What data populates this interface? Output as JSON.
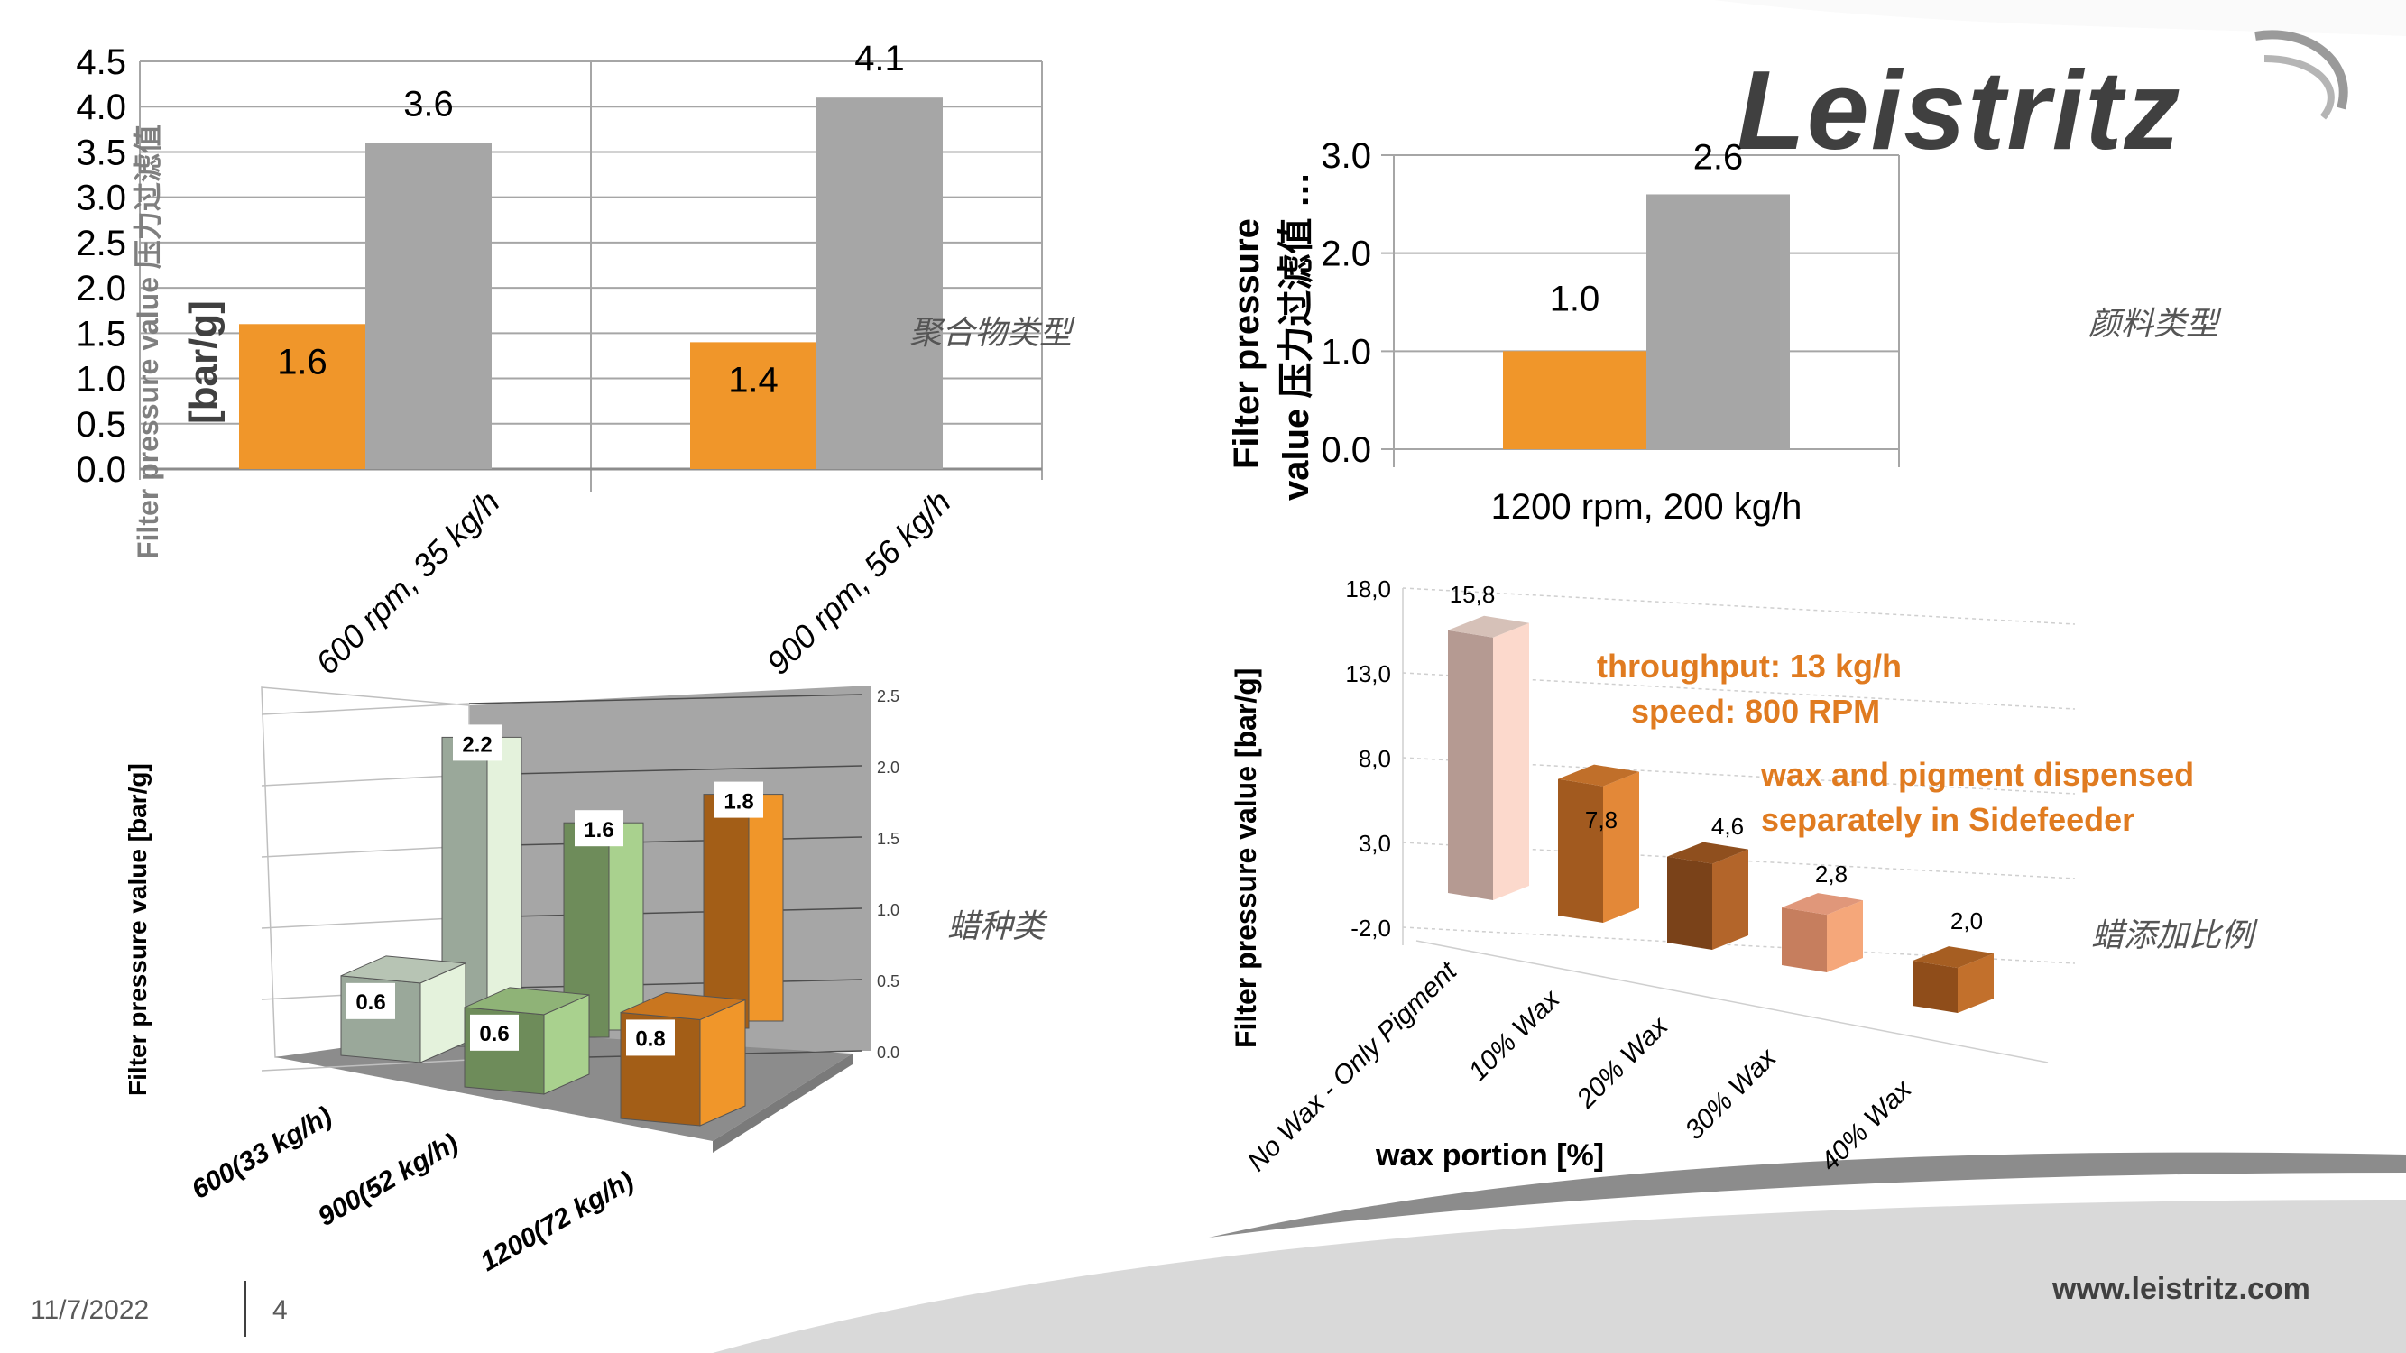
{
  "slide": {
    "date": "11/7/2022",
    "page_number": "4",
    "website": "www.leistritz.com",
    "logo_text": "Leistritz",
    "colors": {
      "orange": "#F0962A",
      "gray_bar": "#A6A6A6",
      "text_dark": "#404040",
      "annotation_orange": "#E07B20"
    }
  },
  "chart_data": [
    {
      "id": "polymer-type",
      "type": "bar",
      "title": "",
      "side_label": "聚合物类型",
      "ylabel": "Filter pressure value 压力过滤值 [bar/g]",
      "xlabel": "",
      "ylim": [
        0,
        4.5
      ],
      "yticks": [
        "0.0",
        "0.5",
        "1.0",
        "1.5",
        "2.0",
        "2.5",
        "3.0",
        "3.5",
        "4.0",
        "4.5"
      ],
      "categories": [
        "600 rpm, 35 kg/h",
        "900 rpm, 56 kg/h"
      ],
      "series": [
        {
          "name": "orange",
          "values": [
            1.6,
            1.4
          ],
          "labels": [
            "1.6",
            "1.4"
          ]
        },
        {
          "name": "gray",
          "values": [
            3.6,
            4.1
          ],
          "labels": [
            "3.6",
            "4.1"
          ]
        }
      ],
      "grid": true
    },
    {
      "id": "pigment-type",
      "type": "bar",
      "side_label": "颜料类型",
      "ylabel": "Filter pressure value 压力过滤值 …",
      "ylim": [
        0,
        3.0
      ],
      "yticks": [
        "0.0",
        "1.0",
        "2.0",
        "3.0"
      ],
      "categories": [
        "1200 rpm, 200 kg/h"
      ],
      "series": [
        {
          "name": "orange",
          "values": [
            1.0
          ],
          "labels": [
            "1.0"
          ]
        },
        {
          "name": "gray",
          "values": [
            2.6
          ],
          "labels": [
            "2.6"
          ]
        }
      ],
      "grid": true
    },
    {
      "id": "wax-type",
      "type": "bar",
      "subtype": "3d",
      "side_label": "蜡种类",
      "ylabel": "Filter pressure value   [bar/g]",
      "ylim": [
        0,
        2.5
      ],
      "yticks": [
        "0.0",
        "0.5",
        "1.0",
        "1.5",
        "2.0",
        "2.5"
      ],
      "categories": [
        "600(33 kg/h)",
        "900(52 kg/h)",
        "1200(72 kg/h)"
      ],
      "series": [
        {
          "name": "front",
          "values": [
            0.6,
            0.6,
            0.8
          ],
          "labels": [
            "0.6",
            "0.6",
            "0.8"
          ]
        },
        {
          "name": "back",
          "values": [
            2.2,
            1.6,
            1.8
          ],
          "labels": [
            "2.2",
            "1.6",
            "1.8"
          ]
        }
      ],
      "grid": true
    },
    {
      "id": "wax-portion",
      "type": "bar",
      "subtype": "3d",
      "side_label": "蜡添加比例",
      "ylabel": "Filter pressure value  [bar/g]",
      "xlabel": "wax portion [%]",
      "ylim": [
        -2.0,
        18.0
      ],
      "yticks": [
        "-2,0",
        "3,0",
        "8,0",
        "13,0",
        "18,0"
      ],
      "categories": [
        "No Wax - Only Pigment",
        "10% Wax",
        "20% Wax",
        "30% Wax",
        "40% Wax"
      ],
      "values": [
        15.8,
        7.8,
        4.6,
        2.8,
        2.0
      ],
      "labels": [
        "15,8",
        "7,8",
        "4,6",
        "2,8",
        "2,0"
      ],
      "annotations": [
        "throughput: 13 kg/h",
        "speed: 800 RPM",
        "wax and pigment dispensed",
        "separately in Sidefeeder"
      ],
      "grid": true
    }
  ]
}
